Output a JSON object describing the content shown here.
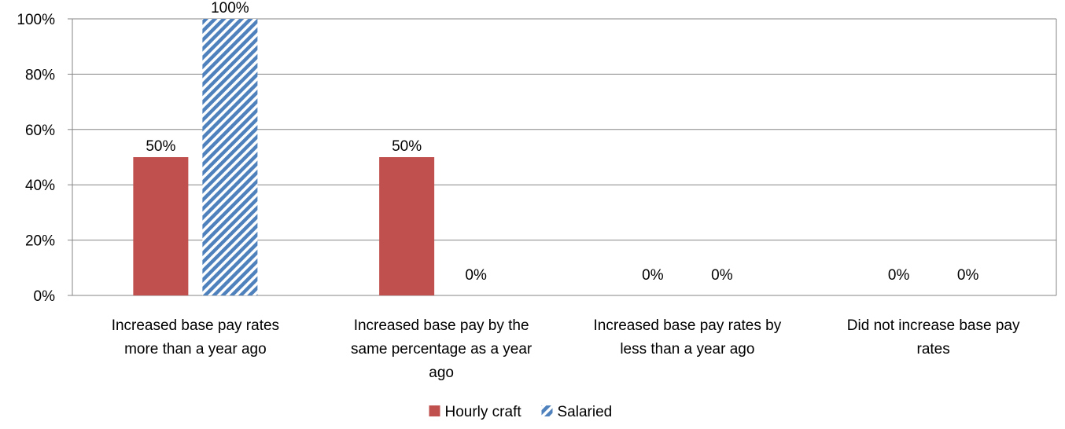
{
  "chart_data": {
    "type": "bar",
    "title": "",
    "xlabel": "",
    "ylabel": "",
    "ylim": [
      0,
      100
    ],
    "y_ticks": [
      "0%",
      "20%",
      "40%",
      "60%",
      "80%",
      "100%"
    ],
    "grid": true,
    "legend_position": "bottom",
    "categories": [
      [
        "Increased base pay rates",
        "more than a year ago"
      ],
      [
        "Increased base pay by the",
        "same percentage as a year",
        "ago"
      ],
      [
        "Increased base pay rates by",
        "less than a year ago"
      ],
      [
        "Did not increase base pay",
        "rates"
      ]
    ],
    "series": [
      {
        "name": "Hourly craft",
        "values": [
          50,
          50,
          0,
          0
        ],
        "labels": [
          "50%",
          "50%",
          "0%",
          "0%"
        ],
        "color": "#c0504d",
        "pattern": "solid"
      },
      {
        "name": "Salaried",
        "values": [
          100,
          0,
          0,
          0
        ],
        "labels": [
          "100%",
          "0%",
          "0%",
          "0%"
        ],
        "color": "#4f81bd",
        "pattern": "diagonal-stripes"
      }
    ]
  }
}
